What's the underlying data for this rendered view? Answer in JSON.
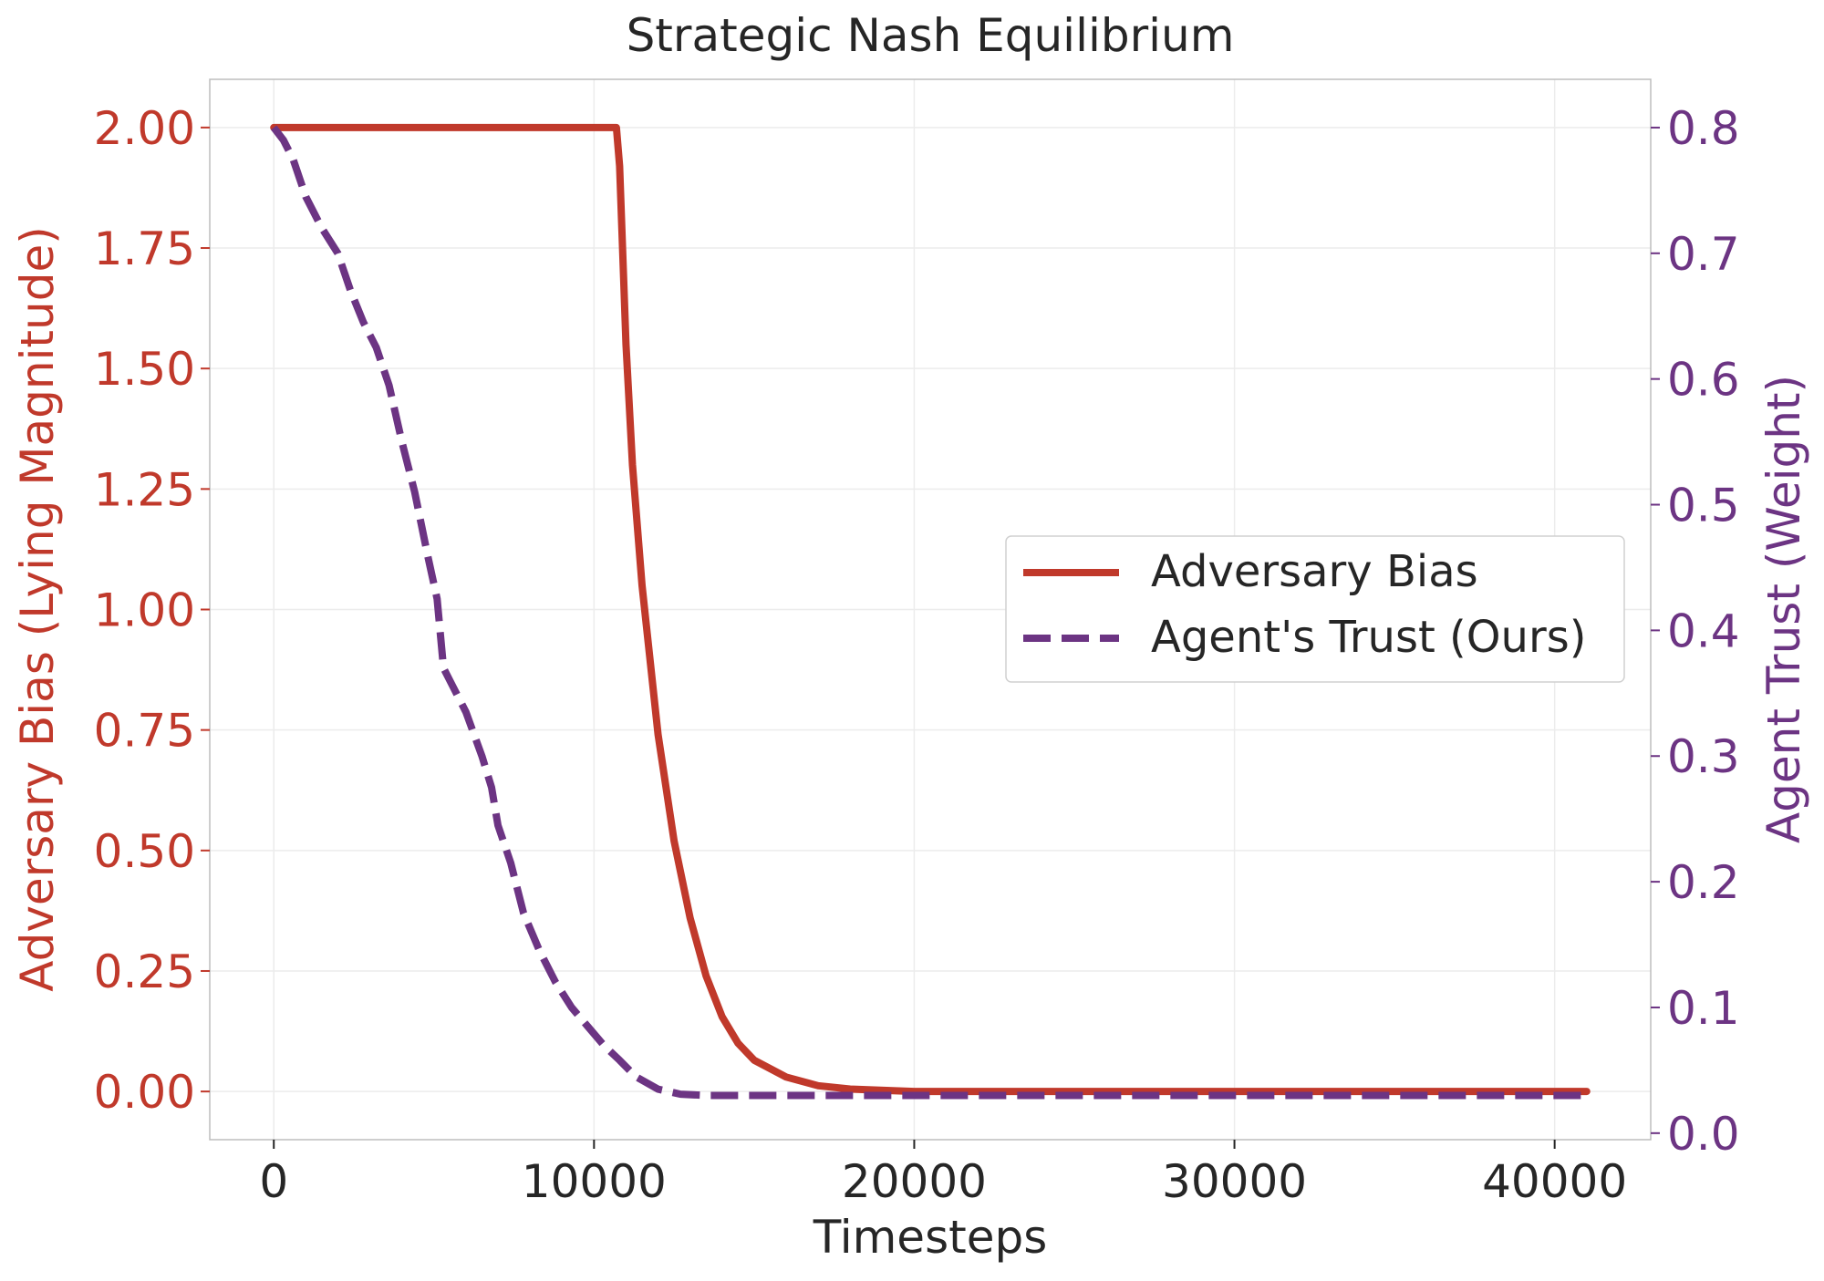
{
  "chart_data": {
    "type": "line",
    "title": "Strategic Nash Equilibrium",
    "xlabel": "Timesteps",
    "ylabel_left": "Adversary Bias (Lying Magnitude)",
    "ylabel_right": "Agent Trust (Weight)",
    "xlim": [
      -2000,
      43000
    ],
    "ylim_left": [
      -0.1,
      2.1
    ],
    "ylim_right": [
      -0.0052,
      0.8384
    ],
    "x_ticks": [
      0,
      10000,
      20000,
      30000,
      40000
    ],
    "x_tick_labels": [
      "0",
      "10000",
      "20000",
      "30000",
      "40000"
    ],
    "y_left_ticks": [
      0,
      0.25,
      0.5,
      0.75,
      1.0,
      1.25,
      1.5,
      1.75,
      2.0
    ],
    "y_left_tick_labels": [
      "0.00",
      "0.25",
      "0.50",
      "0.75",
      "1.00",
      "1.25",
      "1.50",
      "1.75",
      "2.00"
    ],
    "y_right_ticks": [
      0,
      0.1,
      0.2,
      0.3,
      0.4,
      0.5,
      0.6,
      0.7,
      0.8
    ],
    "y_right_tick_labels": [
      "0.0",
      "0.1",
      "0.2",
      "0.3",
      "0.4",
      "0.5",
      "0.6",
      "0.7",
      "0.8"
    ],
    "grid": true,
    "legend_position": "center-right",
    "series": [
      {
        "name": "Adversary Bias",
        "axis": "left",
        "style": "solid",
        "color": "#C0392B",
        "x": [
          0,
          10000,
          10700,
          10800,
          11000,
          11200,
          11500,
          12000,
          12500,
          13000,
          13500,
          14000,
          14500,
          15000,
          16000,
          17000,
          18000,
          20000,
          25000,
          30000,
          35000,
          41000
        ],
        "y": [
          2.0,
          2.0,
          2.0,
          1.92,
          1.55,
          1.3,
          1.05,
          0.74,
          0.52,
          0.36,
          0.24,
          0.155,
          0.1,
          0.065,
          0.03,
          0.012,
          0.005,
          0.0,
          0.0,
          0.0,
          0.0,
          0.0
        ]
      },
      {
        "name": "Agent's Trust (Ours)",
        "axis": "right",
        "style": "dashed",
        "color": "#6C3483",
        "x": [
          0,
          300,
          600,
          1000,
          1500,
          2000,
          2400,
          2800,
          3200,
          3600,
          4000,
          4400,
          4800,
          5100,
          5300,
          5500,
          6000,
          6500,
          6800,
          7000,
          7400,
          7800,
          8300,
          8800,
          9300,
          9800,
          10300,
          10800,
          11300,
          12000,
          12700,
          13500,
          14500,
          16000,
          18000,
          20000,
          25000,
          30000,
          35000,
          41000
        ],
        "y": [
          0.8,
          0.79,
          0.775,
          0.745,
          0.72,
          0.7,
          0.67,
          0.645,
          0.625,
          0.595,
          0.55,
          0.51,
          0.46,
          0.425,
          0.37,
          0.36,
          0.335,
          0.3,
          0.275,
          0.245,
          0.215,
          0.175,
          0.145,
          0.12,
          0.1,
          0.085,
          0.07,
          0.058,
          0.045,
          0.035,
          0.031,
          0.03,
          0.03,
          0.03,
          0.03,
          0.03,
          0.03,
          0.03,
          0.03,
          0.03
        ]
      }
    ]
  }
}
